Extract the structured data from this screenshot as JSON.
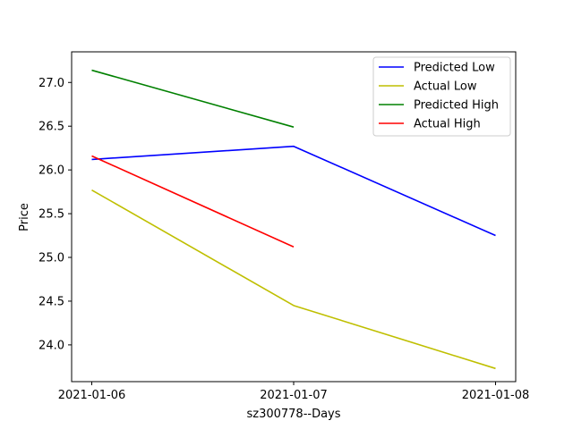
{
  "chart_data": {
    "type": "line",
    "x": [
      "2021-01-06",
      "2021-01-07",
      "2021-01-08"
    ],
    "xlabel": "sz300778--Days",
    "ylabel": "Price",
    "ylim": [
      23.58,
      27.35
    ],
    "yticks": [
      24.0,
      24.5,
      25.0,
      25.5,
      26.0,
      26.5,
      27.0
    ],
    "ytick_labels": [
      "24.0",
      "24.5",
      "25.0",
      "25.5",
      "26.0",
      "26.5",
      "27.0"
    ],
    "grid": false,
    "legend_position": "top-right",
    "series": [
      {
        "name": "Predicted Low",
        "color": "#0000ff",
        "values": [
          26.12,
          26.27,
          25.25
        ]
      },
      {
        "name": "Actual Low",
        "color": "#bfbf00",
        "values": [
          25.77,
          24.45,
          23.73
        ]
      },
      {
        "name": "Predicted High",
        "color": "#008000",
        "values": [
          27.14,
          26.49,
          null
        ]
      },
      {
        "name": "Actual High",
        "color": "#ff0000",
        "values": [
          26.16,
          25.12,
          null
        ]
      }
    ]
  }
}
